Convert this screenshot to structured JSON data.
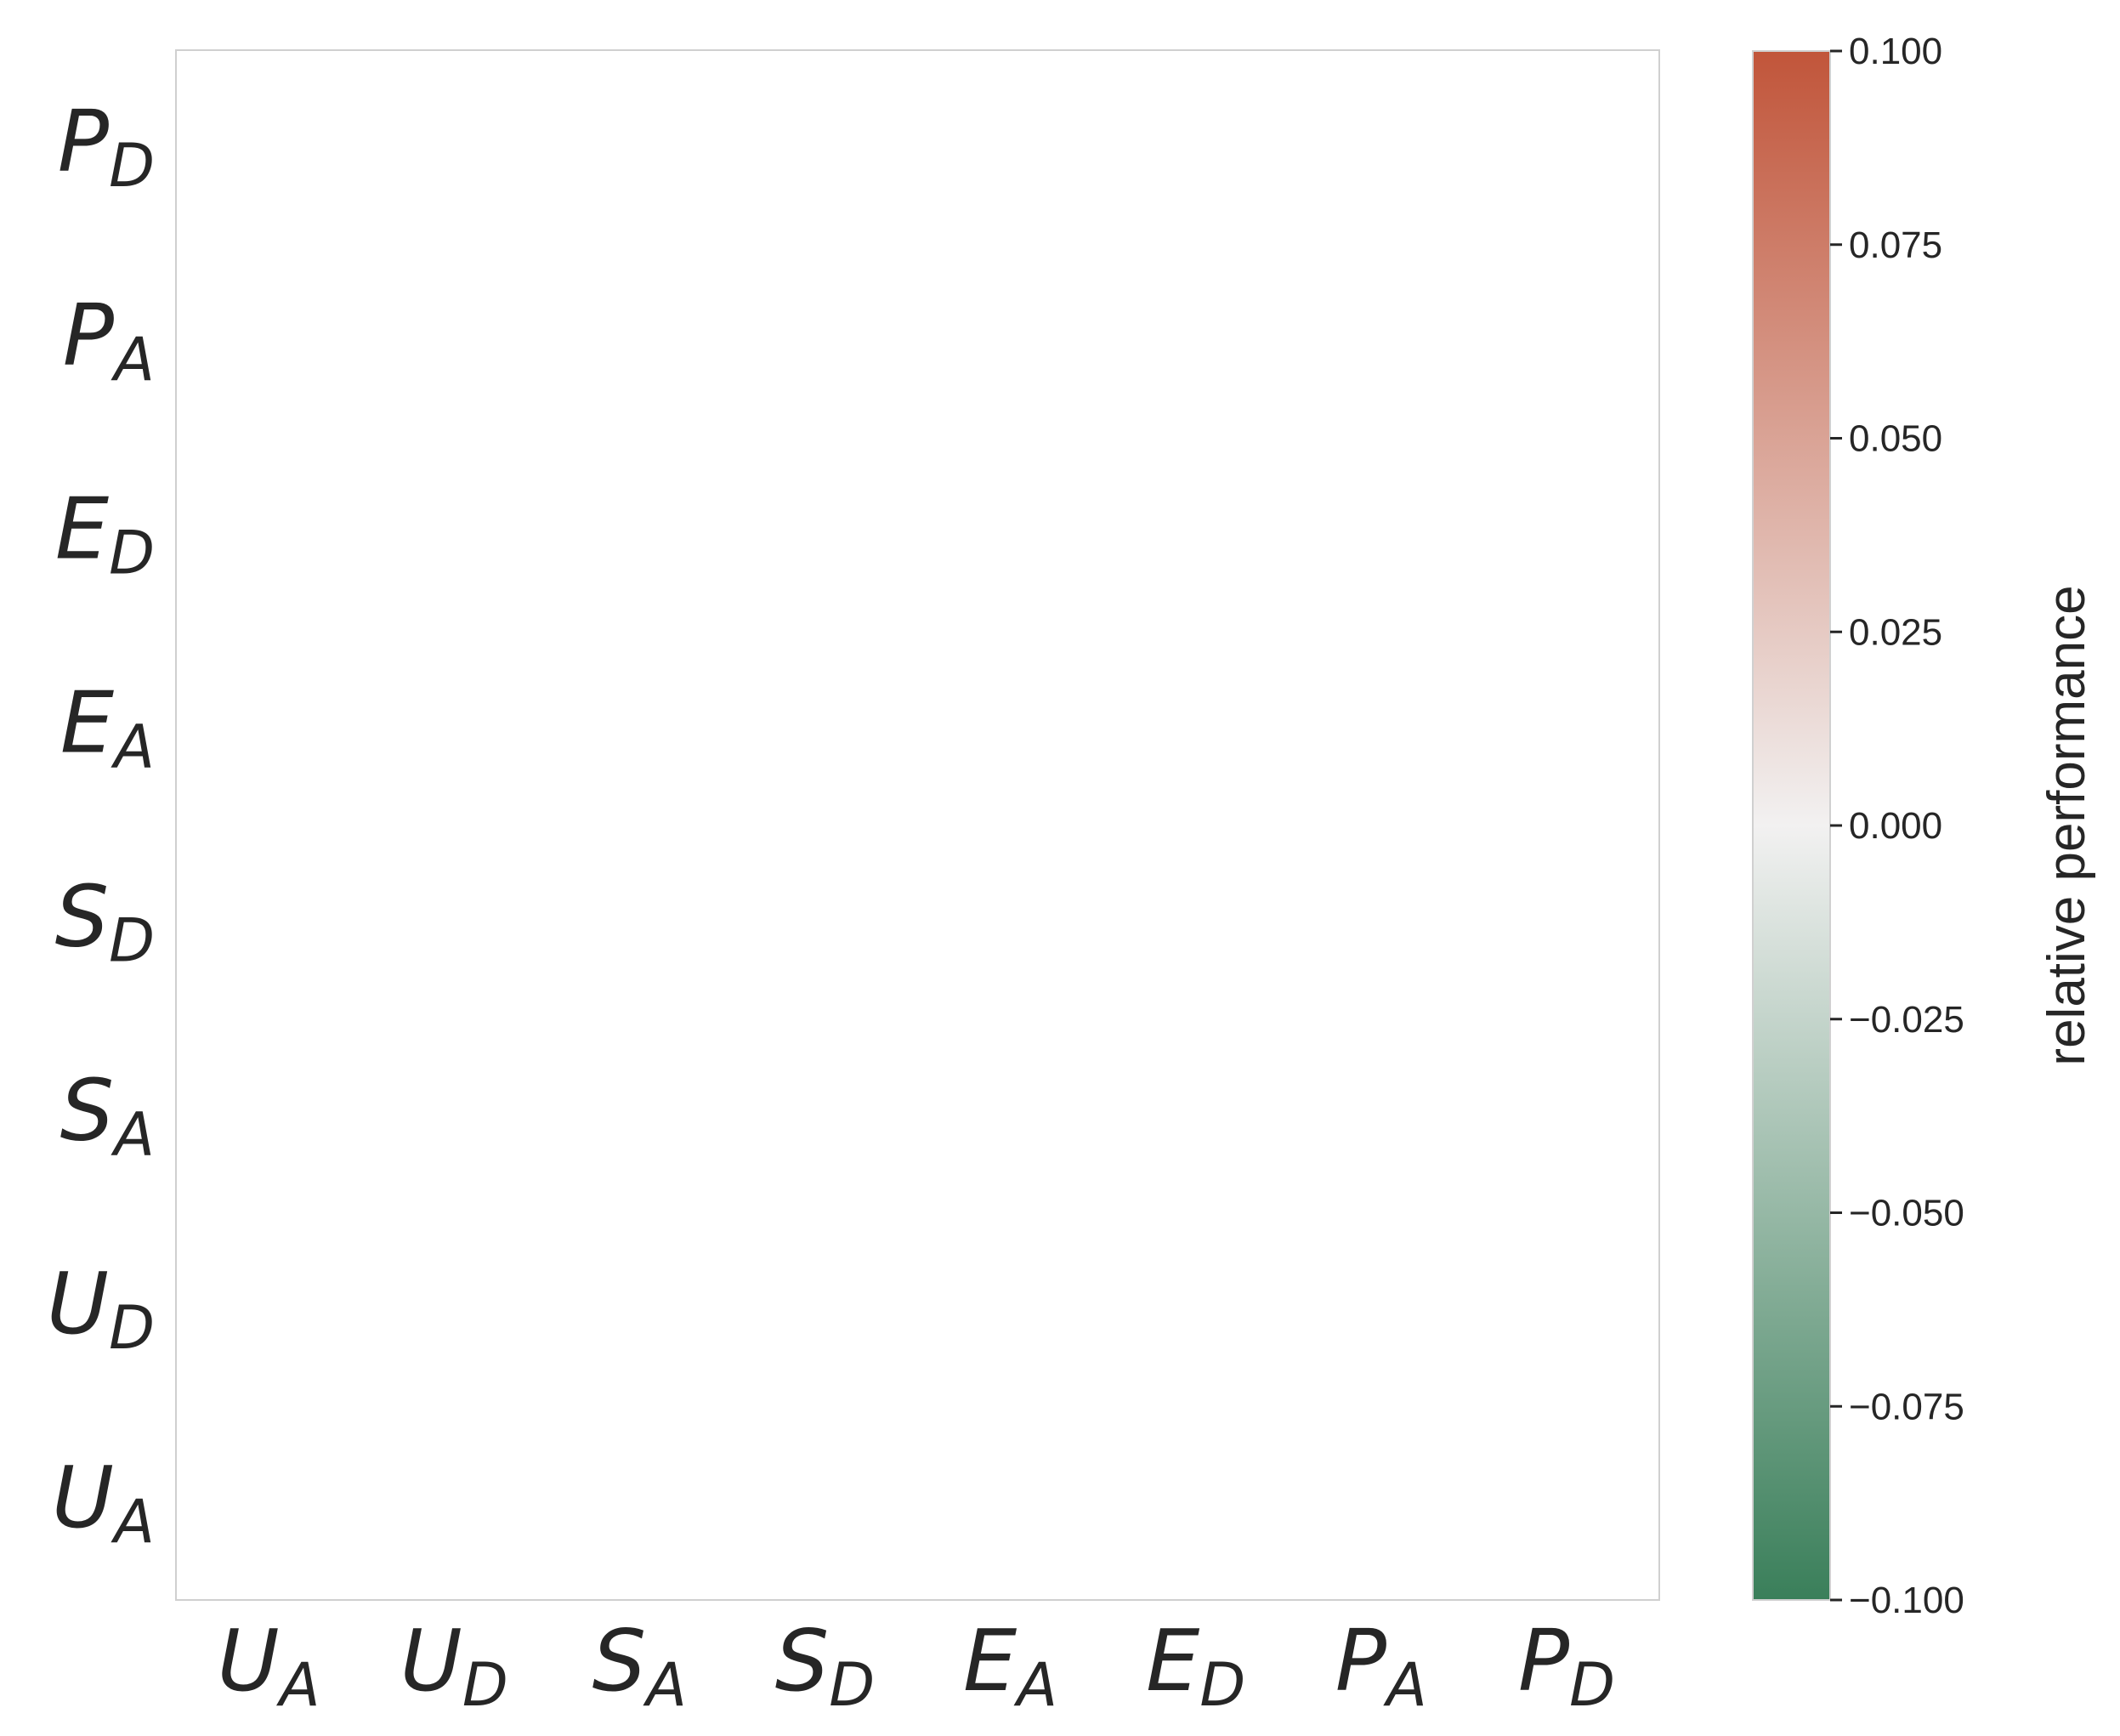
{
  "chart_data": {
    "type": "heatmap",
    "title": "",
    "xlabel": "",
    "ylabel": "",
    "x_categories": [
      {
        "base": "U",
        "sub": "A"
      },
      {
        "base": "U",
        "sub": "D"
      },
      {
        "base": "S",
        "sub": "A"
      },
      {
        "base": "S",
        "sub": "D"
      },
      {
        "base": "E",
        "sub": "A"
      },
      {
        "base": "E",
        "sub": "D"
      },
      {
        "base": "P",
        "sub": "A"
      },
      {
        "base": "P",
        "sub": "D"
      }
    ],
    "y_categories_top_to_bottom": [
      {
        "base": "P",
        "sub": "D"
      },
      {
        "base": "P",
        "sub": "A"
      },
      {
        "base": "E",
        "sub": "D"
      },
      {
        "base": "E",
        "sub": "A"
      },
      {
        "base": "S",
        "sub": "D"
      },
      {
        "base": "S",
        "sub": "A"
      },
      {
        "base": "U",
        "sub": "D"
      },
      {
        "base": "U",
        "sub": "A"
      }
    ],
    "values": [],
    "colorbar": {
      "label": "relative performance",
      "range": [
        -0.1,
        0.1
      ],
      "ticks": [
        {
          "value": 0.1,
          "label": "0.100"
        },
        {
          "value": 0.075,
          "label": "0.075"
        },
        {
          "value": 0.05,
          "label": "0.050"
        },
        {
          "value": 0.025,
          "label": "0.025"
        },
        {
          "value": 0.0,
          "label": "0.000"
        },
        {
          "value": -0.025,
          "label": "−0.025"
        },
        {
          "value": -0.05,
          "label": "−0.050"
        },
        {
          "value": -0.075,
          "label": "−0.075"
        },
        {
          "value": -0.1,
          "label": "−0.100"
        }
      ],
      "color_high": "#c1553a",
      "color_mid": "#f2f1f1",
      "color_low": "#3a7f5a"
    },
    "grid": false
  }
}
